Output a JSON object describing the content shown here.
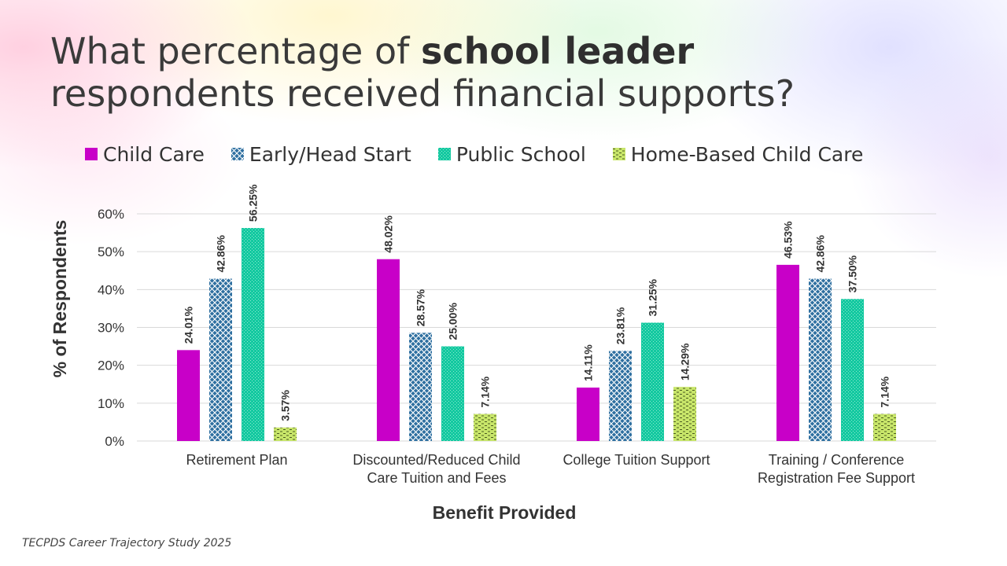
{
  "slide": {
    "title_part1": "What percentage of ",
    "title_bold": "school leader",
    "title_part2": "respondents received financial supports?",
    "source": "TECPDS Career Trajectory Study 2025"
  },
  "colors": {
    "child_care": "#C800C8",
    "early_head_start": "#2E6FA0",
    "public_school": "#13C9A0",
    "home_based": "#C8E66A",
    "grid": "#d9d9d9",
    "text": "#333333"
  },
  "chart_data": {
    "type": "bar",
    "xlabel": "Benefit Provided",
    "ylabel": "% of Respondents",
    "ylim": [
      0,
      60
    ],
    "yticks": [
      "0%",
      "10%",
      "20%",
      "30%",
      "40%",
      "50%",
      "60%"
    ],
    "categories": [
      [
        "Retirement Plan"
      ],
      [
        "Discounted/Reduced Child",
        "Care Tuition and Fees"
      ],
      [
        "College Tuition Support"
      ],
      [
        "Training / Conference",
        "Registration Fee Support"
      ]
    ],
    "series": [
      {
        "name": "Child Care",
        "key": "child_care",
        "values": [
          24.01,
          48.02,
          14.11,
          46.53
        ],
        "labels": [
          "24.01%",
          "48.02%",
          "14.11%",
          "46.53%"
        ]
      },
      {
        "name": "Early/Head Start",
        "key": "early_head_start",
        "values": [
          42.86,
          28.57,
          23.81,
          42.86
        ],
        "labels": [
          "42.86%",
          "28.57%",
          "23.81%",
          "42.86%"
        ]
      },
      {
        "name": "Public School",
        "key": "public_school",
        "values": [
          56.25,
          25.0,
          31.25,
          37.5
        ],
        "labels": [
          "56.25%",
          "25.00%",
          "31.25%",
          "37.50%"
        ]
      },
      {
        "name": "Home-Based Child Care",
        "key": "home_based",
        "values": [
          3.57,
          7.14,
          14.29,
          7.14
        ],
        "labels": [
          "3.57%",
          "7.14%",
          "14.29%",
          "7.14%"
        ]
      }
    ]
  }
}
